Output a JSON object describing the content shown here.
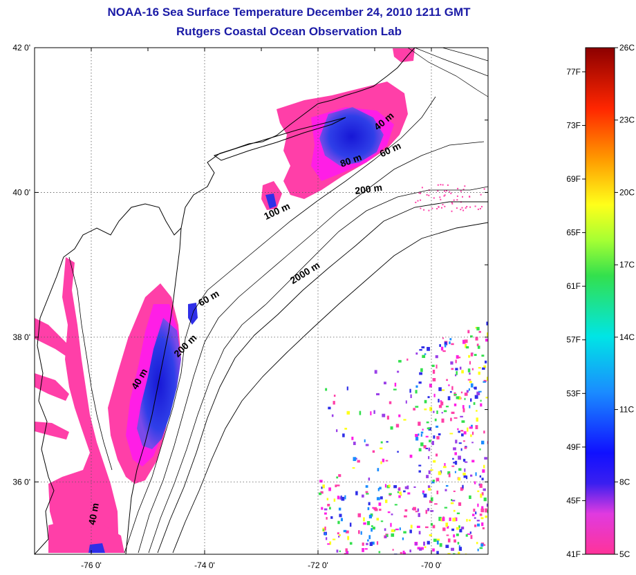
{
  "header": {
    "title": "NOAA-16 Sea Surface Temperature December 24, 2010 1211 GMT",
    "subtitle": "Rutgers Coastal Ocean Observation Lab"
  },
  "map": {
    "lon_range": [
      -77,
      -69
    ],
    "lat_range": [
      35,
      42
    ],
    "lon_ticks": [
      {
        "value": -76,
        "label": "-76 0'"
      },
      {
        "value": -74,
        "label": "-74 0'"
      },
      {
        "value": -72,
        "label": "-72 0'"
      },
      {
        "value": -70,
        "label": "-70 0'"
      }
    ],
    "lat_ticks": [
      {
        "value": 42,
        "label": "42 0'"
      },
      {
        "value": 40,
        "label": "40 0'"
      },
      {
        "value": 38,
        "label": "38 0'"
      },
      {
        "value": 36,
        "label": "36 0'"
      }
    ],
    "depth_labels": [
      {
        "text": "40 m",
        "lon": -70.8,
        "lat": 40.95,
        "rot": -40
      },
      {
        "text": "60 m",
        "lon": -70.7,
        "lat": 40.55,
        "rot": -25
      },
      {
        "text": "80 m",
        "lon": -71.4,
        "lat": 40.4,
        "rot": -20
      },
      {
        "text": "200 m",
        "lon": -71.1,
        "lat": 40.0,
        "rot": -8
      },
      {
        "text": "100 m",
        "lon": -72.7,
        "lat": 39.7,
        "rot": -25
      },
      {
        "text": "2000 m",
        "lon": -72.2,
        "lat": 38.85,
        "rot": -32
      },
      {
        "text": "60 m",
        "lon": -73.9,
        "lat": 38.5,
        "rot": -30
      },
      {
        "text": "200 m",
        "lon": -74.3,
        "lat": 37.85,
        "rot": -45
      },
      {
        "text": "40 m",
        "lon": -75.1,
        "lat": 37.4,
        "rot": -60
      },
      {
        "text": "40 m",
        "lon": -75.9,
        "lat": 35.55,
        "rot": -80
      }
    ],
    "colors": {
      "warm_pink": "#ff3fa8",
      "magenta": "#ff1ee6",
      "cold_blue": "#2f2fe8",
      "deep_blue": "#1717d6",
      "title": "#1a1aa6"
    }
  },
  "colorbar": {
    "range_c": [
      5,
      26
    ],
    "celsius_ticks": [
      {
        "value": 26,
        "label": "26C"
      },
      {
        "value": 23,
        "label": "23C"
      },
      {
        "value": 20,
        "label": "20C"
      },
      {
        "value": 17,
        "label": "17C"
      },
      {
        "value": 14,
        "label": "14C"
      },
      {
        "value": 11,
        "label": "11C"
      },
      {
        "value": 8,
        "label": "8C"
      },
      {
        "value": 5,
        "label": "5C"
      }
    ],
    "fahrenheit_ticks": [
      {
        "value": 77,
        "label": "77F"
      },
      {
        "value": 73,
        "label": "73F"
      },
      {
        "value": 69,
        "label": "69F"
      },
      {
        "value": 65,
        "label": "65F"
      },
      {
        "value": 61,
        "label": "61F"
      },
      {
        "value": 57,
        "label": "57F"
      },
      {
        "value": 53,
        "label": "53F"
      },
      {
        "value": 49,
        "label": "49F"
      },
      {
        "value": 45,
        "label": "45F"
      },
      {
        "value": 41,
        "label": "41F"
      }
    ]
  }
}
